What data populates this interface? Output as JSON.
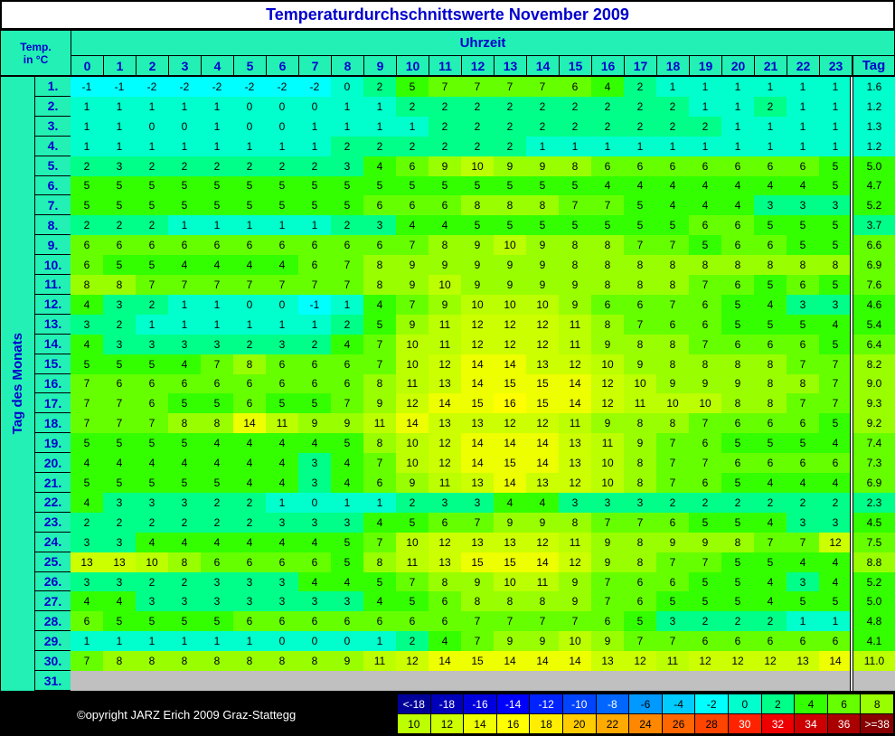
{
  "title": "Temperaturdurchschnittswerte November 2009",
  "corner_label": [
    "Temp.",
    "in °C"
  ],
  "column_group_label": "Uhrzeit",
  "row_group_label": "Tag des Monats",
  "hours": [
    0,
    1,
    2,
    3,
    4,
    5,
    6,
    7,
    8,
    9,
    10,
    11,
    12,
    13,
    14,
    15,
    16,
    17,
    18,
    19,
    20,
    21,
    22,
    23
  ],
  "total_label": "Tag",
  "rows": [
    {
      "day": "1.",
      "values": [
        -1,
        -1,
        -2,
        -2,
        -2,
        -2,
        -2,
        -2,
        0,
        2,
        5,
        7,
        7,
        7,
        7,
        6,
        4,
        2,
        1,
        1,
        1,
        1,
        1,
        1
      ],
      "mean": "1.6"
    },
    {
      "day": "2.",
      "values": [
        1,
        1,
        1,
        1,
        1,
        0,
        0,
        0,
        1,
        1,
        2,
        2,
        2,
        2,
        2,
        2,
        2,
        2,
        2,
        1,
        1,
        2,
        1,
        1
      ],
      "mean": "1.2"
    },
    {
      "day": "3.",
      "values": [
        1,
        1,
        0,
        0,
        1,
        0,
        0,
        1,
        1,
        1,
        1,
        2,
        2,
        2,
        2,
        2,
        2,
        2,
        2,
        2,
        1,
        1,
        1,
        1
      ],
      "mean": "1.3"
    },
    {
      "day": "4.",
      "values": [
        1,
        1,
        1,
        1,
        1,
        1,
        1,
        1,
        2,
        2,
        2,
        2,
        2,
        2,
        1,
        1,
        1,
        1,
        1,
        1,
        1,
        1,
        1,
        1
      ],
      "mean": "1.2"
    },
    {
      "day": "5.",
      "values": [
        2,
        3,
        2,
        2,
        2,
        2,
        2,
        2,
        3,
        4,
        6,
        9,
        10,
        9,
        9,
        8,
        6,
        6,
        6,
        6,
        6,
        6,
        6,
        5
      ],
      "mean": "5.0"
    },
    {
      "day": "6.",
      "values": [
        5,
        5,
        5,
        5,
        5,
        5,
        5,
        5,
        5,
        5,
        5,
        5,
        5,
        5,
        5,
        5,
        4,
        4,
        4,
        4,
        4,
        4,
        4,
        5
      ],
      "mean": "4.7"
    },
    {
      "day": "7.",
      "values": [
        5,
        5,
        5,
        5,
        5,
        5,
        5,
        5,
        5,
        6,
        6,
        6,
        8,
        8,
        8,
        7,
        7,
        5,
        4,
        4,
        4,
        3,
        3,
        3
      ],
      "mean": "5.2"
    },
    {
      "day": "8.",
      "values": [
        2,
        2,
        2,
        1,
        1,
        1,
        1,
        1,
        2,
        3,
        4,
        4,
        5,
        5,
        5,
        5,
        5,
        5,
        5,
        6,
        6,
        5,
        5,
        5
      ],
      "mean": "3.7"
    },
    {
      "day": "9.",
      "values": [
        6,
        6,
        6,
        6,
        6,
        6,
        6,
        6,
        6,
        6,
        7,
        8,
        9,
        10,
        9,
        8,
        8,
        7,
        7,
        5,
        6,
        6,
        5,
        5
      ],
      "mean": "6.6"
    },
    {
      "day": "10.",
      "values": [
        6,
        5,
        5,
        4,
        4,
        4,
        4,
        6,
        7,
        8,
        9,
        9,
        9,
        9,
        9,
        8,
        8,
        8,
        8,
        8,
        8,
        8,
        8,
        8
      ],
      "mean": "6.9"
    },
    {
      "day": "11.",
      "values": [
        8,
        8,
        7,
        7,
        7,
        7,
        7,
        7,
        7,
        8,
        9,
        10,
        9,
        9,
        9,
        9,
        8,
        8,
        8,
        7,
        6,
        5,
        6,
        5
      ],
      "mean": "7.6"
    },
    {
      "day": "12.",
      "values": [
        4,
        3,
        2,
        1,
        1,
        0,
        0,
        -1,
        1,
        4,
        7,
        9,
        10,
        10,
        10,
        9,
        6,
        6,
        7,
        6,
        5,
        4,
        3,
        3
      ],
      "mean": "4.6"
    },
    {
      "day": "13.",
      "values": [
        3,
        2,
        1,
        1,
        1,
        1,
        1,
        1,
        2,
        5,
        9,
        11,
        12,
        12,
        12,
        11,
        8,
        7,
        6,
        6,
        5,
        5,
        5,
        4
      ],
      "mean": "5.4"
    },
    {
      "day": "14.",
      "values": [
        4,
        3,
        3,
        3,
        3,
        2,
        3,
        2,
        4,
        7,
        10,
        11,
        12,
        12,
        12,
        11,
        9,
        8,
        8,
        7,
        6,
        6,
        6,
        5
      ],
      "mean": "6.4"
    },
    {
      "day": "15.",
      "values": [
        5,
        5,
        5,
        4,
        7,
        8,
        6,
        6,
        6,
        7,
        10,
        12,
        14,
        14,
        13,
        12,
        10,
        9,
        8,
        8,
        8,
        8,
        7,
        7
      ],
      "mean": "8.2"
    },
    {
      "day": "16.",
      "values": [
        7,
        6,
        6,
        6,
        6,
        6,
        6,
        6,
        6,
        8,
        11,
        13,
        14,
        15,
        15,
        14,
        12,
        10,
        9,
        9,
        9,
        8,
        8,
        7
      ],
      "mean": "9.0"
    },
    {
      "day": "17.",
      "values": [
        7,
        7,
        6,
        5,
        5,
        6,
        5,
        5,
        7,
        9,
        12,
        14,
        15,
        16,
        15,
        14,
        12,
        11,
        10,
        10,
        8,
        8,
        7,
        7
      ],
      "mean": "9.3"
    },
    {
      "day": "18.",
      "values": [
        7,
        7,
        7,
        8,
        8,
        14,
        11,
        9,
        9,
        11,
        14,
        13,
        13,
        12,
        12,
        11,
        9,
        8,
        8,
        7,
        6,
        6,
        6,
        5
      ],
      "mean": "9.2"
    },
    {
      "day": "19.",
      "values": [
        5,
        5,
        5,
        5,
        4,
        4,
        4,
        4,
        5,
        8,
        10,
        12,
        14,
        14,
        14,
        13,
        11,
        9,
        7,
        6,
        5,
        5,
        5,
        4
      ],
      "mean": "7.4"
    },
    {
      "day": "20.",
      "values": [
        4,
        4,
        4,
        4,
        4,
        4,
        4,
        3,
        4,
        7,
        10,
        12,
        14,
        15,
        14,
        13,
        10,
        8,
        7,
        7,
        6,
        6,
        6,
        6
      ],
      "mean": "7.3"
    },
    {
      "day": "21.",
      "values": [
        5,
        5,
        5,
        5,
        5,
        4,
        4,
        3,
        4,
        6,
        9,
        11,
        13,
        14,
        13,
        12,
        10,
        8,
        7,
        6,
        5,
        4,
        4,
        4
      ],
      "mean": "6.9"
    },
    {
      "day": "22.",
      "values": [
        4,
        3,
        3,
        3,
        2,
        2,
        1,
        0,
        1,
        1,
        2,
        3,
        3,
        4,
        4,
        3,
        3,
        3,
        2,
        2,
        2,
        2,
        2,
        2
      ],
      "mean": "2.3"
    },
    {
      "day": "23.",
      "values": [
        2,
        2,
        2,
        2,
        2,
        2,
        3,
        3,
        3,
        4,
        5,
        6,
        7,
        9,
        9,
        8,
        7,
        7,
        6,
        5,
        5,
        4,
        3,
        3
      ],
      "mean": "4.5"
    },
    {
      "day": "24.",
      "values": [
        3,
        3,
        4,
        4,
        4,
        4,
        4,
        4,
        5,
        7,
        10,
        12,
        13,
        13,
        12,
        11,
        9,
        8,
        9,
        9,
        8,
        7,
        7,
        12
      ],
      "mean": "7.5"
    },
    {
      "day": "25.",
      "values": [
        13,
        13,
        10,
        8,
        6,
        6,
        6,
        6,
        5,
        8,
        11,
        13,
        15,
        15,
        14,
        12,
        9,
        8,
        7,
        7,
        5,
        5,
        4,
        4
      ],
      "mean": "8.8"
    },
    {
      "day": "26.",
      "values": [
        3,
        3,
        2,
        2,
        3,
        3,
        3,
        4,
        4,
        5,
        7,
        8,
        9,
        10,
        11,
        9,
        7,
        6,
        6,
        5,
        5,
        4,
        3,
        4
      ],
      "mean": "5.2"
    },
    {
      "day": "27.",
      "values": [
        4,
        4,
        3,
        3,
        3,
        3,
        3,
        3,
        3,
        4,
        5,
        6,
        8,
        8,
        8,
        9,
        7,
        6,
        5,
        5,
        5,
        4,
        5,
        5
      ],
      "mean": "5.0"
    },
    {
      "day": "28.",
      "values": [
        6,
        5,
        5,
        5,
        5,
        6,
        6,
        6,
        6,
        6,
        6,
        6,
        7,
        7,
        7,
        7,
        6,
        5,
        3,
        2,
        2,
        2,
        1,
        1
      ],
      "mean": "4.8"
    },
    {
      "day": "29.",
      "values": [
        1,
        1,
        1,
        1,
        1,
        1,
        0,
        0,
        0,
        1,
        2,
        4,
        7,
        9,
        9,
        10,
        9,
        7,
        7,
        6,
        6,
        6,
        6,
        6
      ],
      "mean": "4.1"
    },
    {
      "day": "30.",
      "values": [
        7,
        8,
        8,
        8,
        8,
        8,
        8,
        8,
        9,
        11,
        12,
        14,
        15,
        14,
        14,
        14,
        13,
        12,
        11,
        12,
        12,
        12,
        13,
        14
      ],
      "mean": "11.0"
    },
    {
      "day": "31."
    }
  ],
  "copyright": "©opyright JARZ Erich 2009 Graz-Stattegg",
  "legend": [
    {
      "label": "<-18",
      "color": "#000099"
    },
    {
      "value": -18,
      "color": "#0000bb"
    },
    {
      "value": -16,
      "color": "#0000dd"
    },
    {
      "value": -14,
      "color": "#0000ff"
    },
    {
      "value": -12,
      "color": "#0022ff"
    },
    {
      "value": -10,
      "color": "#0044ff"
    },
    {
      "value": -8,
      "color": "#0066ff"
    },
    {
      "value": -6,
      "color": "#0099ff"
    },
    {
      "value": -4,
      "color": "#00ccff"
    },
    {
      "value": -2,
      "color": "#00ffff"
    },
    {
      "value": 0,
      "color": "#00ffcc"
    },
    {
      "value": 2,
      "color": "#00ff88"
    },
    {
      "value": 4,
      "color": "#33ff00"
    },
    {
      "value": 6,
      "color": "#66ff00"
    },
    {
      "value": 8,
      "color": "#99ff00"
    },
    {
      "value": 10,
      "color": "#bbff00"
    },
    {
      "value": 12,
      "color": "#ccff00"
    },
    {
      "value": 14,
      "color": "#eeff00"
    },
    {
      "value": 16,
      "color": "#ffff00"
    },
    {
      "value": 18,
      "color": "#ffee00"
    },
    {
      "value": 20,
      "color": "#ffcc00"
    },
    {
      "value": 22,
      "color": "#ffaa00"
    },
    {
      "value": 24,
      "color": "#ff8800"
    },
    {
      "value": 26,
      "color": "#ff6600"
    },
    {
      "value": 28,
      "color": "#ff4400"
    },
    {
      "value": 30,
      "color": "#ff2200"
    },
    {
      "value": 32,
      "color": "#ee0000"
    },
    {
      "value": 34,
      "color": "#cc0000"
    },
    {
      "value": 36,
      "color": "#aa0000"
    },
    {
      "value": 38,
      "label": ">=38",
      "color": "#880000"
    }
  ]
}
